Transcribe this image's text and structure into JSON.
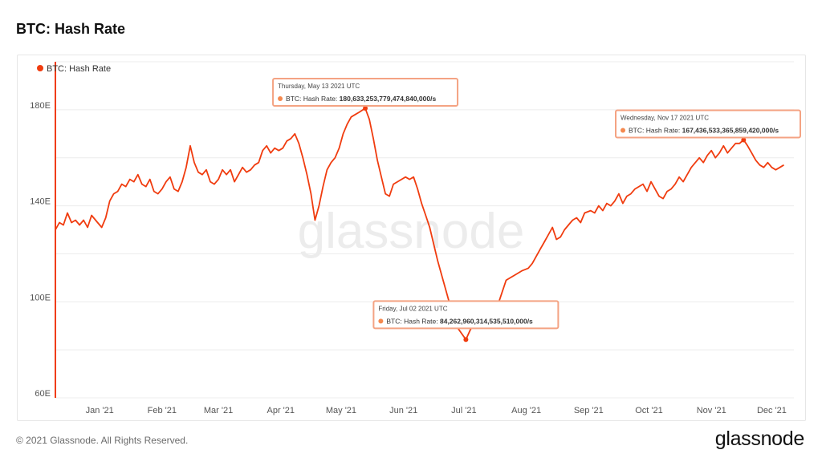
{
  "page": {
    "title": "BTC: Hash Rate",
    "copyright": "© 2021 Glassnode. All Rights Reserved.",
    "brand": "glassnode",
    "watermark": "glassnode"
  },
  "colors": {
    "series": "#f03c0f",
    "tooltip_border": "#f4a383",
    "tooltip_dot": "#f5894f",
    "grid": "#ececec",
    "tick_text": "#555555",
    "watermark": "#ececec"
  },
  "chart_data": {
    "type": "line",
    "title": "BTC: Hash Rate",
    "xlabel": "",
    "ylabel": "",
    "legend": {
      "position": "top-left",
      "entries": [
        "BTC: Hash Rate"
      ]
    },
    "y_unit": "E",
    "ylim": [
      60,
      200
    ],
    "yticks": [
      60,
      100,
      140,
      180
    ],
    "ytick_labels": [
      "60E",
      "100E",
      "140E",
      "180E"
    ],
    "xlim": [
      "2020-12-10",
      "2021-12-12"
    ],
    "xticks": [
      {
        "date": "2021-01-01",
        "label": "Jan '21"
      },
      {
        "date": "2021-02-01",
        "label": "Feb '21"
      },
      {
        "date": "2021-03-01",
        "label": "Mar '21"
      },
      {
        "date": "2021-04-01",
        "label": "Apr '21"
      },
      {
        "date": "2021-05-01",
        "label": "May '21"
      },
      {
        "date": "2021-06-01",
        "label": "Jun '21"
      },
      {
        "date": "2021-07-01",
        "label": "Jul '21"
      },
      {
        "date": "2021-08-01",
        "label": "Aug '21"
      },
      {
        "date": "2021-09-01",
        "label": "Sep '21"
      },
      {
        "date": "2021-10-01",
        "label": "Oct '21"
      },
      {
        "date": "2021-11-01",
        "label": "Nov '21"
      },
      {
        "date": "2021-12-01",
        "label": "Dec '21"
      }
    ],
    "grid": true,
    "series": [
      {
        "name": "BTC: Hash Rate",
        "points": [
          [
            "2020-12-10",
            130
          ],
          [
            "2020-12-12",
            133
          ],
          [
            "2020-12-14",
            132
          ],
          [
            "2020-12-16",
            137
          ],
          [
            "2020-12-18",
            133
          ],
          [
            "2020-12-20",
            134
          ],
          [
            "2020-12-22",
            132
          ],
          [
            "2020-12-24",
            134
          ],
          [
            "2020-12-26",
            131
          ],
          [
            "2020-12-28",
            136
          ],
          [
            "2020-12-31",
            133
          ],
          [
            "2021-01-02",
            131
          ],
          [
            "2021-01-04",
            135
          ],
          [
            "2021-01-06",
            142
          ],
          [
            "2021-01-08",
            145
          ],
          [
            "2021-01-10",
            146
          ],
          [
            "2021-01-12",
            149
          ],
          [
            "2021-01-14",
            148
          ],
          [
            "2021-01-16",
            151
          ],
          [
            "2021-01-18",
            150
          ],
          [
            "2021-01-20",
            153
          ],
          [
            "2021-01-22",
            149
          ],
          [
            "2021-01-24",
            148
          ],
          [
            "2021-01-26",
            151
          ],
          [
            "2021-01-28",
            146
          ],
          [
            "2021-01-30",
            145
          ],
          [
            "2021-02-01",
            147
          ],
          [
            "2021-02-03",
            150
          ],
          [
            "2021-02-05",
            152
          ],
          [
            "2021-02-07",
            147
          ],
          [
            "2021-02-09",
            146
          ],
          [
            "2021-02-11",
            150
          ],
          [
            "2021-02-13",
            156
          ],
          [
            "2021-02-15",
            165
          ],
          [
            "2021-02-17",
            158
          ],
          [
            "2021-02-19",
            154
          ],
          [
            "2021-02-21",
            153
          ],
          [
            "2021-02-23",
            155
          ],
          [
            "2021-02-25",
            150
          ],
          [
            "2021-02-27",
            149
          ],
          [
            "2021-03-01",
            151
          ],
          [
            "2021-03-03",
            155
          ],
          [
            "2021-03-05",
            153
          ],
          [
            "2021-03-07",
            155
          ],
          [
            "2021-03-09",
            150
          ],
          [
            "2021-03-11",
            153
          ],
          [
            "2021-03-13",
            156
          ],
          [
            "2021-03-15",
            154
          ],
          [
            "2021-03-17",
            155
          ],
          [
            "2021-03-19",
            157
          ],
          [
            "2021-03-21",
            158
          ],
          [
            "2021-03-23",
            163
          ],
          [
            "2021-03-25",
            165
          ],
          [
            "2021-03-27",
            162
          ],
          [
            "2021-03-29",
            164
          ],
          [
            "2021-03-31",
            163
          ],
          [
            "2021-04-02",
            164
          ],
          [
            "2021-04-04",
            167
          ],
          [
            "2021-04-06",
            168
          ],
          [
            "2021-04-08",
            170
          ],
          [
            "2021-04-10",
            166
          ],
          [
            "2021-04-12",
            160
          ],
          [
            "2021-04-14",
            153
          ],
          [
            "2021-04-16",
            145
          ],
          [
            "2021-04-18",
            134
          ],
          [
            "2021-04-20",
            140
          ],
          [
            "2021-04-22",
            148
          ],
          [
            "2021-04-24",
            155
          ],
          [
            "2021-04-26",
            158
          ],
          [
            "2021-04-28",
            160
          ],
          [
            "2021-04-30",
            164
          ],
          [
            "2021-05-02",
            170
          ],
          [
            "2021-05-04",
            174
          ],
          [
            "2021-05-06",
            177
          ],
          [
            "2021-05-08",
            178
          ],
          [
            "2021-05-10",
            179
          ],
          [
            "2021-05-13",
            180.63
          ],
          [
            "2021-05-15",
            176
          ],
          [
            "2021-05-17",
            168
          ],
          [
            "2021-05-19",
            159
          ],
          [
            "2021-05-21",
            152
          ],
          [
            "2021-05-23",
            145
          ],
          [
            "2021-05-25",
            144
          ],
          [
            "2021-05-27",
            149
          ],
          [
            "2021-05-29",
            150
          ],
          [
            "2021-05-31",
            151
          ],
          [
            "2021-06-02",
            152
          ],
          [
            "2021-06-04",
            151
          ],
          [
            "2021-06-06",
            152
          ],
          [
            "2021-06-08",
            147
          ],
          [
            "2021-06-10",
            141
          ],
          [
            "2021-06-12",
            136
          ],
          [
            "2021-06-14",
            131
          ],
          [
            "2021-06-16",
            124
          ],
          [
            "2021-06-18",
            117
          ],
          [
            "2021-06-20",
            111
          ],
          [
            "2021-06-22",
            105
          ],
          [
            "2021-06-24",
            99
          ],
          [
            "2021-06-26",
            94
          ],
          [
            "2021-06-28",
            89
          ],
          [
            "2021-07-02",
            84.26
          ],
          [
            "2021-07-04",
            88
          ],
          [
            "2021-07-06",
            91
          ],
          [
            "2021-07-08",
            95
          ],
          [
            "2021-07-10",
            93
          ],
          [
            "2021-07-12",
            98
          ],
          [
            "2021-07-14",
            100
          ],
          [
            "2021-07-16",
            97
          ],
          [
            "2021-07-18",
            99
          ],
          [
            "2021-07-20",
            104
          ],
          [
            "2021-07-22",
            109
          ],
          [
            "2021-07-24",
            110
          ],
          [
            "2021-07-26",
            111
          ],
          [
            "2021-07-28",
            112
          ],
          [
            "2021-07-30",
            113
          ],
          [
            "2021-08-02",
            114
          ],
          [
            "2021-08-04",
            116
          ],
          [
            "2021-08-06",
            119
          ],
          [
            "2021-08-08",
            122
          ],
          [
            "2021-08-10",
            125
          ],
          [
            "2021-08-12",
            128
          ],
          [
            "2021-08-14",
            131
          ],
          [
            "2021-08-16",
            126
          ],
          [
            "2021-08-18",
            127
          ],
          [
            "2021-08-20",
            130
          ],
          [
            "2021-08-22",
            132
          ],
          [
            "2021-08-24",
            134
          ],
          [
            "2021-08-26",
            135
          ],
          [
            "2021-08-28",
            133
          ],
          [
            "2021-08-30",
            137
          ],
          [
            "2021-09-02",
            138
          ],
          [
            "2021-09-04",
            137
          ],
          [
            "2021-09-06",
            140
          ],
          [
            "2021-09-08",
            138
          ],
          [
            "2021-09-10",
            141
          ],
          [
            "2021-09-12",
            140
          ],
          [
            "2021-09-14",
            142
          ],
          [
            "2021-09-16",
            145
          ],
          [
            "2021-09-18",
            141
          ],
          [
            "2021-09-20",
            144
          ],
          [
            "2021-09-22",
            145
          ],
          [
            "2021-09-24",
            147
          ],
          [
            "2021-09-26",
            148
          ],
          [
            "2021-09-28",
            149
          ],
          [
            "2021-09-30",
            146
          ],
          [
            "2021-10-02",
            150
          ],
          [
            "2021-10-04",
            147
          ],
          [
            "2021-10-06",
            144
          ],
          [
            "2021-10-08",
            143
          ],
          [
            "2021-10-10",
            146
          ],
          [
            "2021-10-12",
            147
          ],
          [
            "2021-10-14",
            149
          ],
          [
            "2021-10-16",
            152
          ],
          [
            "2021-10-18",
            150
          ],
          [
            "2021-10-20",
            153
          ],
          [
            "2021-10-22",
            156
          ],
          [
            "2021-10-24",
            158
          ],
          [
            "2021-10-26",
            160
          ],
          [
            "2021-10-28",
            158
          ],
          [
            "2021-10-30",
            161
          ],
          [
            "2021-11-01",
            163
          ],
          [
            "2021-11-03",
            160
          ],
          [
            "2021-11-05",
            162
          ],
          [
            "2021-11-07",
            165
          ],
          [
            "2021-11-09",
            162
          ],
          [
            "2021-11-11",
            164
          ],
          [
            "2021-11-13",
            166
          ],
          [
            "2021-11-15",
            166
          ],
          [
            "2021-11-17",
            167.44
          ],
          [
            "2021-11-19",
            165
          ],
          [
            "2021-11-21",
            162
          ],
          [
            "2021-11-23",
            159
          ],
          [
            "2021-11-25",
            157
          ],
          [
            "2021-11-27",
            156
          ],
          [
            "2021-11-29",
            158
          ],
          [
            "2021-12-01",
            156
          ],
          [
            "2021-12-03",
            155
          ],
          [
            "2021-12-05",
            156
          ],
          [
            "2021-12-07",
            157
          ]
        ]
      }
    ],
    "annotations": [
      {
        "date": "2021-05-13",
        "value": 180.63,
        "header": "Thursday, May 13 2021 UTC",
        "series_label": "BTC: Hash Rate:",
        "value_text": "180,633,253,779,474,840,000/s"
      },
      {
        "date": "2021-07-02",
        "value": 84.26,
        "header": "Friday, Jul 02 2021 UTC",
        "series_label": "BTC: Hash Rate:",
        "value_text": "84,262,960,314,535,510,000/s"
      },
      {
        "date": "2021-11-17",
        "value": 167.44,
        "header": "Wednesday, Nov 17 2021 UTC",
        "series_label": "BTC: Hash Rate:",
        "value_text": "167,436,533,365,859,420,000/s"
      }
    ]
  }
}
